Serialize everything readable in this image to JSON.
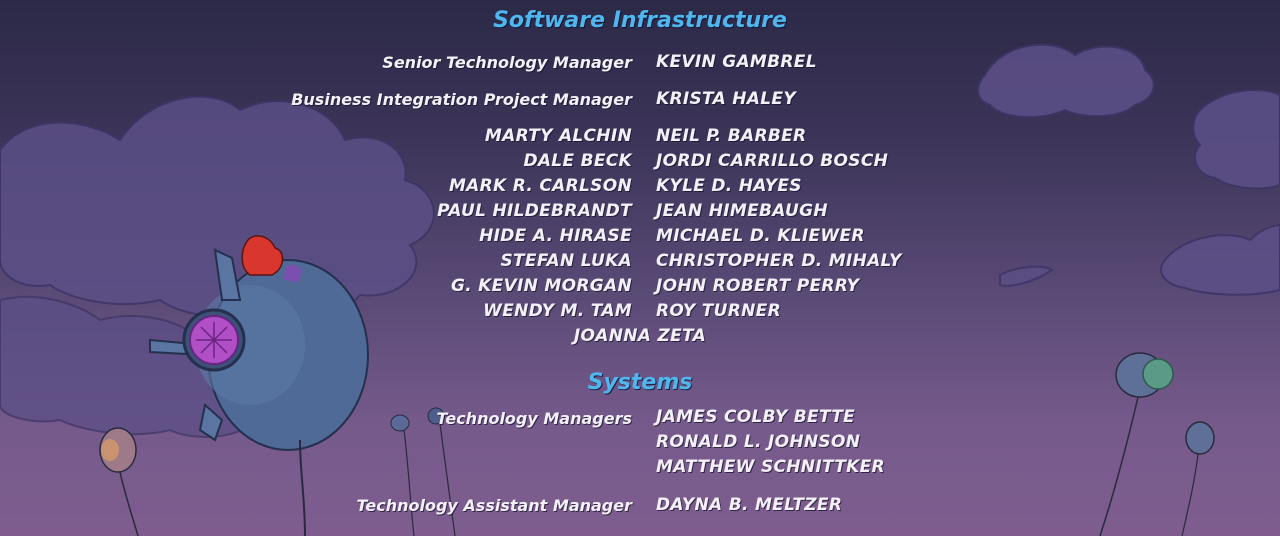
{
  "sections": [
    {
      "heading": "Software Infrastructure",
      "credits": [
        {
          "role": "Senior Technology Manager",
          "name": "KEVIN GAMBREL"
        },
        {
          "role": "Business Integration Project Manager",
          "name": "KRISTA HALEY"
        }
      ],
      "pairs": [
        {
          "left": "MARTY ALCHIN",
          "right": "NEIL P. BARBER"
        },
        {
          "left": "DALE BECK",
          "right": "JORDI CARRILLO BOSCH"
        },
        {
          "left": "MARK R. CARLSON",
          "right": "KYLE D. HAYES"
        },
        {
          "left": "PAUL HILDEBRANDT",
          "right": "JEAN HIMEBAUGH"
        },
        {
          "left": "HIDE A. HIRASE",
          "right": "MICHAEL D. KLIEWER"
        },
        {
          "left": "STEFAN LUKA",
          "right": "CHRISTOPHER D. MIHALY"
        },
        {
          "left": "G. KEVIN MORGAN",
          "right": "JOHN ROBERT PERRY"
        },
        {
          "left": "WENDY M. TAM",
          "right": "ROY TURNER"
        }
      ],
      "centered": "JOANNA ZETA"
    },
    {
      "heading": "Systems",
      "credits": [
        {
          "role": "Technology Managers",
          "names": [
            "JAMES COLBY BETTE",
            "RONALD L. JOHNSON",
            "MATTHEW SCHNITTKER"
          ]
        },
        {
          "role": "Technology Assistant Manager",
          "name": "DAYNA B. MELTZER"
        }
      ]
    }
  ],
  "colors": {
    "heading": "#4fb6ee",
    "text": "#f3f0f7",
    "sky_top": "#2c2947",
    "sky_bottom": "#7e5d8e"
  },
  "icons": [
    "airship-illustration",
    "balloon-illustration",
    "cloud-illustration"
  ]
}
